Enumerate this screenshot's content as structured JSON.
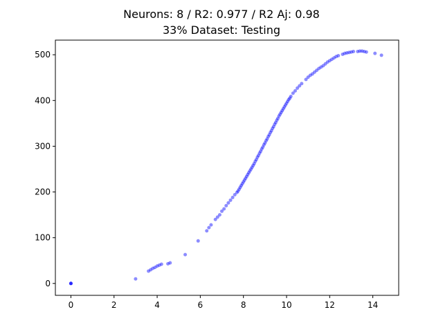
{
  "chart_data": {
    "type": "scatter",
    "title": "Neurons: 8 / R2: 0.977 / R2 Aj: 0.98",
    "subtitle": "33% Dataset: Testing",
    "xlabel": "",
    "ylabel": "",
    "xlim": [
      -0.72,
      15.2
    ],
    "ylim": [
      -26,
      532
    ],
    "x_ticks": [
      0,
      2,
      4,
      6,
      8,
      10,
      12,
      14
    ],
    "y_ticks": [
      0,
      100,
      200,
      300,
      400,
      500
    ],
    "grid": false,
    "legend": "none",
    "marker_color": "#0000ff",
    "marker_alpha": 0.45,
    "series": [
      {
        "x": [
          0.0,
          0.0,
          0.0,
          3.0,
          3.6,
          3.7,
          3.8,
          3.9,
          4.0,
          4.1,
          4.2,
          4.5,
          4.6,
          5.3,
          5.9,
          6.3,
          6.4,
          6.5,
          6.7,
          6.8,
          6.9,
          7.0,
          7.1,
          7.2,
          7.3,
          7.4,
          7.5,
          7.6,
          7.7,
          7.75,
          7.8,
          7.85,
          7.9,
          7.95,
          8.0,
          8.05,
          8.1,
          8.15,
          8.2,
          8.25,
          8.3,
          8.35,
          8.4,
          8.45,
          8.5,
          8.55,
          8.6,
          8.65,
          8.7,
          8.75,
          8.8,
          8.85,
          8.9,
          8.95,
          9.0,
          9.05,
          9.1,
          9.15,
          9.2,
          9.25,
          9.3,
          9.35,
          9.4,
          9.45,
          9.5,
          9.55,
          9.6,
          9.65,
          9.7,
          9.75,
          9.8,
          9.85,
          9.9,
          9.95,
          10.0,
          10.05,
          10.1,
          10.15,
          10.2,
          10.3,
          10.4,
          10.5,
          10.6,
          10.7,
          10.9,
          11.0,
          11.1,
          11.2,
          11.3,
          11.4,
          11.5,
          11.6,
          11.7,
          11.8,
          11.9,
          12.0,
          12.1,
          12.2,
          12.3,
          12.4,
          12.6,
          12.7,
          12.8,
          12.9,
          13.0,
          13.1,
          13.3,
          13.4,
          13.5,
          13.6,
          13.7,
          14.1,
          14.4
        ],
        "y": [
          0,
          0,
          0,
          10,
          27,
          30,
          33,
          35,
          38,
          40,
          42,
          43,
          45,
          63,
          93,
          115,
          122,
          128,
          140,
          145,
          150,
          158,
          163,
          170,
          176,
          182,
          188,
          194,
          199,
          202,
          206,
          210,
          214,
          218,
          222,
          226,
          230,
          234,
          238,
          242,
          246,
          250,
          254,
          258,
          262,
          267,
          271,
          276,
          280,
          285,
          289,
          294,
          298,
          303,
          307,
          312,
          316,
          321,
          325,
          330,
          334,
          339,
          343,
          348,
          352,
          357,
          361,
          366,
          370,
          374,
          378,
          382,
          386,
          390,
          394,
          398,
          402,
          405,
          409,
          416,
          421,
          427,
          432,
          437,
          446,
          451,
          455,
          458,
          462,
          466,
          470,
          473,
          476,
          480,
          484,
          487,
          490,
          493,
          496,
          498,
          501,
          503,
          504,
          505,
          506,
          507,
          507,
          508,
          508,
          507,
          506,
          503,
          499
        ]
      }
    ]
  }
}
